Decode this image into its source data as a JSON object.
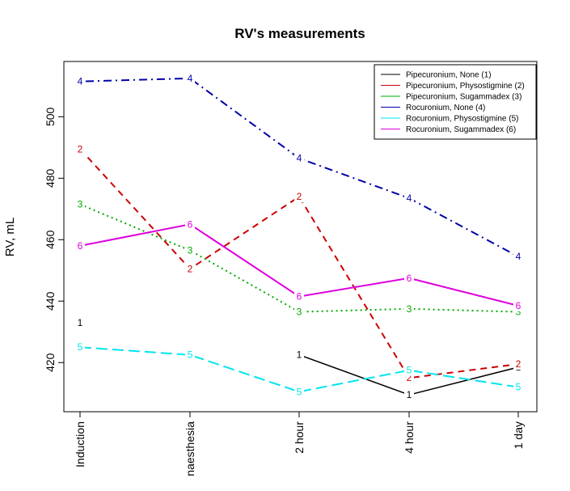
{
  "chart_data": {
    "type": "line",
    "title": "RV's measurements",
    "ylabel": "RV, mL",
    "xlabel": "",
    "categories": [
      "Induction",
      "naesthesia",
      "2 hour",
      "4 hour",
      "1 day"
    ],
    "ylim": [
      404,
      518
    ],
    "yticks": [
      420,
      440,
      460,
      480,
      500
    ],
    "legend_position": "top-right",
    "series": [
      {
        "name": "Pipecuronium, None (1)",
        "label": "1",
        "color": "#000000",
        "dash": "solid",
        "values": [
          433,
          null,
          422.5,
          409.5,
          418.5
        ]
      },
      {
        "name": "Pipecuronium, Physostigmine (2)",
        "label": "2",
        "color": "#cc0000",
        "dash": "dashed",
        "values": [
          489.5,
          450.5,
          474,
          415,
          419.5
        ]
      },
      {
        "name": "Pipecuronium, Sugammadex (3)",
        "label": "3",
        "color": "#00aa00",
        "dash": "dotted",
        "values": [
          471.5,
          456.5,
          436.5,
          437.5,
          436.5
        ]
      },
      {
        "name": "Rocuronium, None (4)",
        "label": "4",
        "color": "#0000aa",
        "dash": "dotdash",
        "values": [
          511.5,
          512.5,
          486.5,
          473.5,
          454.5
        ]
      },
      {
        "name": "Rocuronium, Physostigmine (5)",
        "label": "5",
        "color": "#00e5ee",
        "dash": "longdash",
        "values": [
          425,
          422.5,
          410.5,
          417.5,
          412
        ]
      },
      {
        "name": "Rocuronium, Sugammadex (6)",
        "label": "6",
        "color": "#dd00dd",
        "dash": "solid",
        "values": [
          458,
          465,
          441.5,
          447.5,
          438.5
        ]
      }
    ]
  }
}
